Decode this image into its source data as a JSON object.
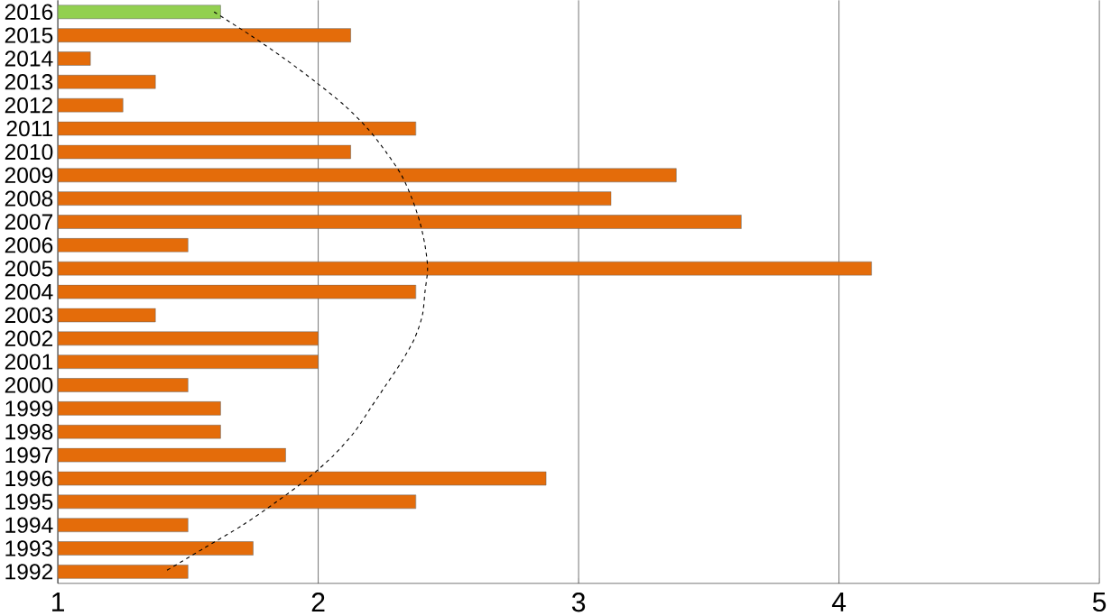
{
  "chart_data": {
    "type": "bar",
    "orientation": "horizontal",
    "categories": [
      "2016",
      "2015",
      "2014",
      "2013",
      "2012",
      "2011",
      "2010",
      "2009",
      "2008",
      "2007",
      "2006",
      "2005",
      "2004",
      "2003",
      "2002",
      "2001",
      "2000",
      "1999",
      "1998",
      "1997",
      "1996",
      "1995",
      "1994",
      "1993",
      "1992"
    ],
    "series": [
      {
        "values": [
          1.625,
          2.125,
          1.125,
          1.375,
          1.25,
          2.375,
          2.125,
          3.375,
          3.125,
          3.625,
          1.5,
          4.125,
          2.375,
          1.375,
          2,
          2,
          1.5,
          1.625,
          1.625,
          1.875,
          2.875,
          2.375,
          1.5,
          1.75,
          1.5
        ],
        "colors": [
          "#92d050",
          "#e46c0a",
          "#e46c0a",
          "#e46c0a",
          "#e46c0a",
          "#e46c0a",
          "#e46c0a",
          "#e46c0a",
          "#e46c0a",
          "#e46c0a",
          "#e46c0a",
          "#e46c0a",
          "#e46c0a",
          "#e46c0a",
          "#e46c0a",
          "#e46c0a",
          "#e46c0a",
          "#e46c0a",
          "#e46c0a",
          "#e46c0a",
          "#e46c0a",
          "#e46c0a",
          "#e46c0a",
          "#e46c0a",
          "#e46c0a"
        ]
      },
      {
        "type": "line",
        "color": "#000000",
        "line_style": "dashed",
        "values": [
          1.6,
          1.74,
          1.87,
          1.99,
          2.1,
          2.19,
          2.26,
          2.32,
          2.36,
          2.39,
          2.41,
          2.42,
          2.41,
          2.4,
          2.37,
          2.32,
          2.26,
          2.2,
          2.14,
          2.06,
          1.96,
          1.84,
          1.71,
          1.56,
          1.41
        ]
      }
    ],
    "xlim": [
      1,
      5
    ],
    "xticks": [
      1,
      2,
      3,
      4,
      5
    ],
    "grid": "x"
  }
}
